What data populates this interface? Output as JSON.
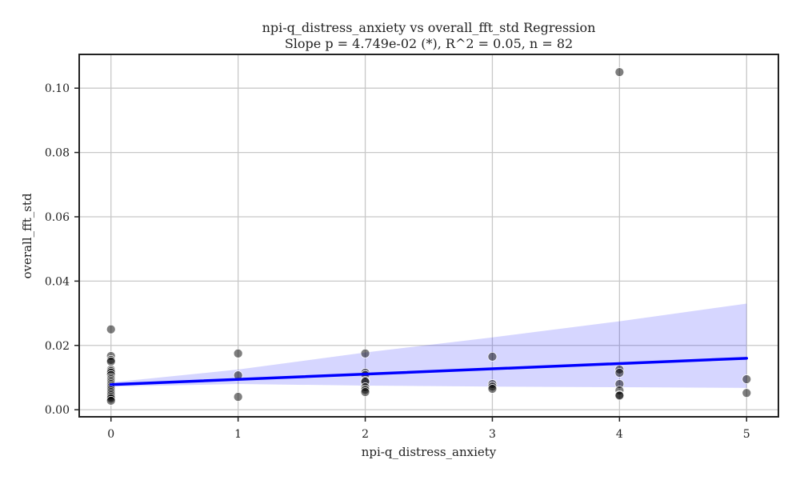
{
  "chart_data": {
    "type": "scatter",
    "title": "npi-q_distress_anxiety vs overall_fft_std Regression",
    "subtitle": "Slope p = 4.749e-02 (*), R^2 = 0.05, n = 82",
    "xlabel": "npi-q_distress_anxiety",
    "ylabel": "overall_fft_std",
    "xlim": [
      -0.25,
      5.25
    ],
    "ylim": [
      -0.0022,
      0.1105
    ],
    "xticks": [
      0,
      1,
      2,
      3,
      4,
      5
    ],
    "xtick_labels": [
      "0",
      "1",
      "2",
      "3",
      "4",
      "5"
    ],
    "yticks": [
      0.0,
      0.02,
      0.04,
      0.06,
      0.08,
      0.1
    ],
    "ytick_labels": [
      "0.00",
      "0.02",
      "0.04",
      "0.06",
      "0.08",
      "0.10"
    ],
    "grid": true,
    "points": [
      {
        "x": 0,
        "y": 0.025
      },
      {
        "x": 0,
        "y": 0.0167
      },
      {
        "x": 0,
        "y": 0.0155
      },
      {
        "x": 0,
        "y": 0.015
      },
      {
        "x": 0,
        "y": 0.0125
      },
      {
        "x": 0,
        "y": 0.012
      },
      {
        "x": 0,
        "y": 0.0115
      },
      {
        "x": 0,
        "y": 0.0108
      },
      {
        "x": 0,
        "y": 0.01
      },
      {
        "x": 0,
        "y": 0.0095
      },
      {
        "x": 0,
        "y": 0.009
      },
      {
        "x": 0,
        "y": 0.0085
      },
      {
        "x": 0,
        "y": 0.008
      },
      {
        "x": 0,
        "y": 0.0075
      },
      {
        "x": 0,
        "y": 0.007
      },
      {
        "x": 0,
        "y": 0.0065
      },
      {
        "x": 0,
        "y": 0.006
      },
      {
        "x": 0,
        "y": 0.0055
      },
      {
        "x": 0,
        "y": 0.005
      },
      {
        "x": 0,
        "y": 0.0045
      },
      {
        "x": 0,
        "y": 0.004
      },
      {
        "x": 0,
        "y": 0.0035
      },
      {
        "x": 0,
        "y": 0.0028
      },
      {
        "x": 1,
        "y": 0.0175
      },
      {
        "x": 1,
        "y": 0.0107
      },
      {
        "x": 1,
        "y": 0.004
      },
      {
        "x": 2,
        "y": 0.0175
      },
      {
        "x": 2,
        "y": 0.0115
      },
      {
        "x": 2,
        "y": 0.0108
      },
      {
        "x": 2,
        "y": 0.009
      },
      {
        "x": 2,
        "y": 0.0087
      },
      {
        "x": 2,
        "y": 0.007
      },
      {
        "x": 2,
        "y": 0.0062
      },
      {
        "x": 2,
        "y": 0.0055
      },
      {
        "x": 3,
        "y": 0.0165
      },
      {
        "x": 3,
        "y": 0.008
      },
      {
        "x": 3,
        "y": 0.0072
      },
      {
        "x": 3,
        "y": 0.0065
      },
      {
        "x": 4,
        "y": 0.105
      },
      {
        "x": 4,
        "y": 0.0125
      },
      {
        "x": 4,
        "y": 0.0115
      },
      {
        "x": 4,
        "y": 0.008
      },
      {
        "x": 4,
        "y": 0.006
      },
      {
        "x": 4,
        "y": 0.0046
      },
      {
        "x": 4,
        "y": 0.0044
      },
      {
        "x": 5,
        "y": 0.0095
      },
      {
        "x": 5,
        "y": 0.0052
      }
    ],
    "regression_line": {
      "x": [
        0,
        5
      ],
      "y": [
        0.0078,
        0.016
      ]
    },
    "confidence_band": {
      "x": [
        0,
        1,
        2,
        3,
        4,
        5
      ],
      "upper": [
        0.0085,
        0.0125,
        0.0178,
        0.0225,
        0.0275,
        0.033
      ],
      "lower": [
        0.0072,
        0.008,
        0.0075,
        0.0072,
        0.007,
        0.0068
      ]
    },
    "colors": {
      "points": "#000000",
      "regression_line": "#0000ff",
      "confidence_band": "#0000ff",
      "grid": "#c8c8c8",
      "axes": "#222222"
    }
  }
}
